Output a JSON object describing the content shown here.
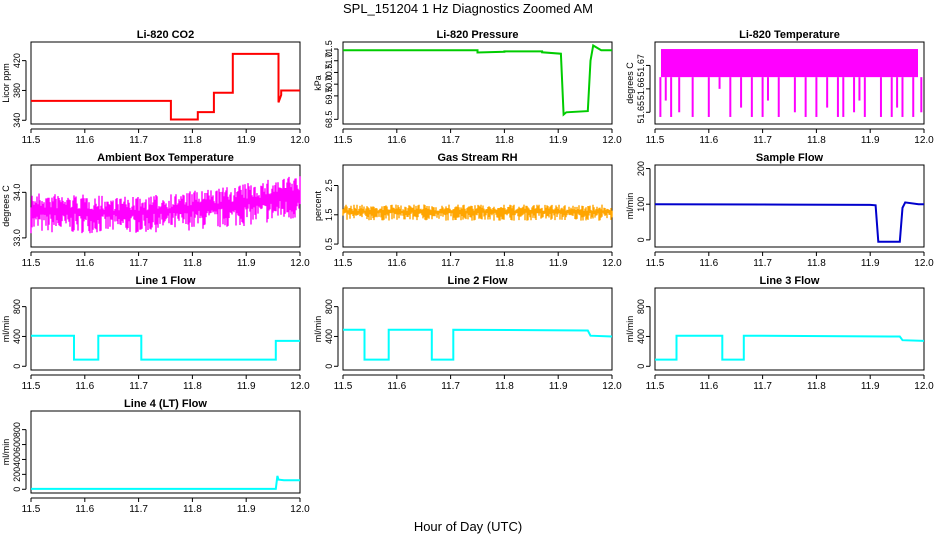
{
  "page": {
    "title": "SPL_151204  1 Hz Diagnostics Zoomed AM",
    "xlabel": "Hour of Day (UTC)"
  },
  "colors": {
    "red": "#ff0000",
    "green": "#00cc00",
    "magenta": "#ff00ff",
    "orange": "#ffa500",
    "blue": "#0000cc",
    "cyan": "#00ffff",
    "axis": "#000000"
  },
  "chart_data": [
    {
      "id": "li820-co2",
      "type": "line",
      "title": "Li-820 CO2",
      "ylabel": "Licor ppm",
      "color": "red",
      "xlim": [
        11.5,
        12.0
      ],
      "ylim": [
        335,
        445
      ],
      "xticks": [
        11.5,
        11.6,
        11.7,
        11.8,
        11.9,
        12.0
      ],
      "xticklabels": [
        "11.5",
        "11.6",
        "11.7",
        "11.8",
        "11.9",
        "12.0"
      ],
      "yticks": [
        340,
        380,
        420
      ],
      "yticklabels": [
        "340",
        "380",
        "420"
      ],
      "series": [
        {
          "name": "CO2",
          "x": [
            11.5,
            11.76,
            11.76,
            11.81,
            11.81,
            11.84,
            11.84,
            11.875,
            11.875,
            11.96,
            11.96,
            11.965,
            11.965,
            12.0
          ],
          "y": [
            366,
            366,
            341,
            341,
            351,
            351,
            377,
            377,
            429,
            429,
            364,
            374,
            380,
            380
          ]
        }
      ]
    },
    {
      "id": "li820-pressure",
      "type": "line",
      "title": "Li-820 Pressure",
      "ylabel": "kPa",
      "color": "green",
      "xlim": [
        11.5,
        12.0
      ],
      "ylim": [
        68.3,
        71.8
      ],
      "xticks": [
        11.5,
        11.6,
        11.7,
        11.8,
        11.9,
        12.0
      ],
      "xticklabels": [
        "11.5",
        "11.6",
        "11.7",
        "11.8",
        "11.9",
        "12.0"
      ],
      "yticks": [
        68.5,
        69.5,
        70.0,
        70.5,
        71.0,
        71.5
      ],
      "yticklabels": [
        "68.5",
        "69.5",
        "70.0",
        "70.5",
        "71.0",
        "71.5"
      ],
      "series": [
        {
          "name": "Pressure",
          "x": [
            11.5,
            11.75,
            11.75,
            11.8,
            11.8,
            11.87,
            11.87,
            11.905,
            11.91,
            11.915,
            11.955,
            11.96,
            11.965,
            11.98,
            12.0
          ],
          "y": [
            71.45,
            71.45,
            71.35,
            71.38,
            71.4,
            71.4,
            71.36,
            71.3,
            68.7,
            68.8,
            68.85,
            71.0,
            71.65,
            71.45,
            71.45
          ]
        }
      ]
    },
    {
      "id": "li820-temperature",
      "type": "band",
      "title": "Li-820 Temperature",
      "ylabel": "degrees C",
      "color": "magenta",
      "xlim": [
        11.5,
        12.0
      ],
      "ylim": [
        51.645,
        51.68
      ],
      "xticks": [
        11.5,
        11.6,
        11.7,
        11.8,
        11.9,
        12.0
      ],
      "xticklabels": [
        "11.5",
        "11.6",
        "11.7",
        "11.8",
        "11.9",
        "12.0"
      ],
      "yticks": [
        51.65,
        51.66,
        51.67
      ],
      "yticklabels": [
        "51.65",
        "51.66",
        "51.67"
      ],
      "band": {
        "low": 51.665,
        "high": 51.677
      },
      "dips": [
        [
          11.51,
          51.648
        ],
        [
          11.52,
          51.655
        ],
        [
          11.53,
          51.648
        ],
        [
          11.545,
          51.65
        ],
        [
          11.57,
          51.648
        ],
        [
          11.6,
          51.648
        ],
        [
          11.62,
          51.66
        ],
        [
          11.64,
          51.648
        ],
        [
          11.66,
          51.652
        ],
        [
          11.68,
          51.648
        ],
        [
          11.7,
          51.648
        ],
        [
          11.71,
          51.655
        ],
        [
          11.73,
          51.648
        ],
        [
          11.76,
          51.65
        ],
        [
          11.78,
          51.648
        ],
        [
          11.8,
          51.648
        ],
        [
          11.82,
          51.652
        ],
        [
          11.84,
          51.648
        ],
        [
          11.85,
          51.648
        ],
        [
          11.87,
          51.65
        ],
        [
          11.88,
          51.655
        ],
        [
          11.89,
          51.648
        ],
        [
          11.92,
          51.648
        ],
        [
          11.94,
          51.648
        ],
        [
          11.95,
          51.652
        ],
        [
          11.96,
          51.648
        ],
        [
          11.98,
          51.648
        ],
        [
          11.995,
          51.65
        ]
      ]
    },
    {
      "id": "ambient-box-temperature",
      "type": "noise",
      "title": "Ambient Box Temperature",
      "ylabel": "degrees C",
      "color": "magenta",
      "xlim": [
        11.5,
        12.0
      ],
      "ylim": [
        32.8,
        34.6
      ],
      "xticks": [
        11.5,
        11.6,
        11.7,
        11.8,
        11.9,
        12.0
      ],
      "xticklabels": [
        "11.5",
        "11.6",
        "11.7",
        "11.8",
        "11.9",
        "12.0"
      ],
      "yticks": [
        33.0,
        34.0
      ],
      "yticklabels": [
        "33.0",
        "34.0"
      ],
      "noise": {
        "x": [
          11.5,
          11.7,
          11.85,
          12.0
        ],
        "low": [
          33.1,
          33.1,
          33.2,
          33.4
        ],
        "high": [
          34.0,
          33.9,
          34.1,
          34.4
        ]
      }
    },
    {
      "id": "gas-stream-rh",
      "type": "noise",
      "title": "Gas Stream RH",
      "ylabel": "percent",
      "color": "orange",
      "xlim": [
        11.5,
        12.0
      ],
      "ylim": [
        0.4,
        3.2
      ],
      "xticks": [
        11.5,
        11.6,
        11.7,
        11.8,
        11.9,
        12.0
      ],
      "xticklabels": [
        "11.5",
        "11.6",
        "11.7",
        "11.8",
        "11.9",
        "12.0"
      ],
      "yticks": [
        0.5,
        1.5,
        2.5
      ],
      "yticklabels": [
        "0.5",
        "1.5",
        "2.5"
      ],
      "noise": {
        "x": [
          11.5,
          12.0
        ],
        "low": [
          1.3,
          1.3
        ],
        "high": [
          1.85,
          1.85
        ]
      }
    },
    {
      "id": "sample-flow",
      "type": "line",
      "title": "Sample Flow",
      "ylabel": "ml/min",
      "color": "blue",
      "xlim": [
        11.5,
        12.0
      ],
      "ylim": [
        -20,
        210
      ],
      "xticks": [
        11.5,
        11.6,
        11.7,
        11.8,
        11.9,
        12.0
      ],
      "xticklabels": [
        "11.5",
        "11.6",
        "11.7",
        "11.8",
        "11.9",
        "12.0"
      ],
      "yticks": [
        0,
        100,
        200
      ],
      "yticklabels": [
        "0",
        "100",
        "200"
      ],
      "series": [
        {
          "name": "Sample Flow",
          "x": [
            11.5,
            11.75,
            11.9,
            11.91,
            11.915,
            11.955,
            11.96,
            11.965,
            11.99,
            12.0
          ],
          "y": [
            100,
            99,
            98,
            97,
            -5,
            -5,
            90,
            105,
            100,
            100
          ]
        }
      ]
    },
    {
      "id": "line-1-flow",
      "type": "line",
      "title": "Line 1 Flow",
      "ylabel": "ml/min",
      "color": "cyan",
      "xlim": [
        11.5,
        12.0
      ],
      "ylim": [
        -50,
        1050
      ],
      "xticks": [
        11.5,
        11.6,
        11.7,
        11.8,
        11.9,
        12.0
      ],
      "xticklabels": [
        "11.5",
        "11.6",
        "11.7",
        "11.8",
        "11.9",
        "12.0"
      ],
      "yticks": [
        0,
        400,
        800
      ],
      "yticklabels": [
        "0",
        "400",
        "800"
      ],
      "series": [
        {
          "name": "Line 1",
          "x": [
            11.5,
            11.58,
            11.58,
            11.625,
            11.625,
            11.705,
            11.705,
            11.955,
            11.955,
            12.0
          ],
          "y": [
            410,
            410,
            90,
            90,
            410,
            410,
            90,
            90,
            340,
            340
          ]
        }
      ]
    },
    {
      "id": "line-2-flow",
      "type": "line",
      "title": "Line 2 Flow",
      "ylabel": "ml/min",
      "color": "cyan",
      "xlim": [
        11.5,
        12.0
      ],
      "ylim": [
        -50,
        1050
      ],
      "xticks": [
        11.5,
        11.6,
        11.7,
        11.8,
        11.9,
        12.0
      ],
      "xticklabels": [
        "11.5",
        "11.6",
        "11.7",
        "11.8",
        "11.9",
        "12.0"
      ],
      "yticks": [
        0,
        400,
        800
      ],
      "yticklabels": [
        "0",
        "400",
        "800"
      ],
      "series": [
        {
          "name": "Line 2",
          "x": [
            11.5,
            11.54,
            11.54,
            11.585,
            11.585,
            11.665,
            11.665,
            11.705,
            11.705,
            11.955,
            11.96,
            12.0
          ],
          "y": [
            490,
            490,
            90,
            90,
            490,
            490,
            90,
            90,
            490,
            480,
            410,
            400
          ]
        }
      ]
    },
    {
      "id": "line-3-flow",
      "type": "line",
      "title": "Line 3 Flow",
      "ylabel": "ml/min",
      "color": "cyan",
      "xlim": [
        11.5,
        12.0
      ],
      "ylim": [
        -50,
        1050
      ],
      "xticks": [
        11.5,
        11.6,
        11.7,
        11.8,
        11.9,
        12.0
      ],
      "xticklabels": [
        "11.5",
        "11.6",
        "11.7",
        "11.8",
        "11.9",
        "12.0"
      ],
      "yticks": [
        0,
        400,
        800
      ],
      "yticklabels": [
        "0",
        "400",
        "800"
      ],
      "series": [
        {
          "name": "Line 3",
          "x": [
            11.5,
            11.54,
            11.54,
            11.625,
            11.625,
            11.665,
            11.665,
            11.955,
            11.96,
            12.0
          ],
          "y": [
            90,
            90,
            410,
            410,
            90,
            90,
            410,
            400,
            350,
            340
          ]
        }
      ]
    },
    {
      "id": "line-4-lt-flow",
      "type": "line",
      "title": "Line 4 (LT) Flow",
      "ylabel": "ml/min",
      "color": "cyan",
      "xlim": [
        11.5,
        12.0
      ],
      "ylim": [
        -50,
        1050
      ],
      "xticks": [
        11.5,
        11.6,
        11.7,
        11.8,
        11.9,
        12.0
      ],
      "xticklabels": [
        "11.5",
        "11.6",
        "11.7",
        "11.8",
        "11.9",
        "12.0"
      ],
      "yticks": [
        0,
        200,
        400,
        600,
        800
      ],
      "yticklabels": [
        "0",
        "200",
        "400",
        "600",
        "800"
      ],
      "series": [
        {
          "name": "Line 4",
          "x": [
            11.5,
            11.955,
            11.958,
            11.96,
            11.97,
            12.0
          ],
          "y": [
            5,
            5,
            180,
            130,
            120,
            120
          ]
        }
      ]
    }
  ]
}
